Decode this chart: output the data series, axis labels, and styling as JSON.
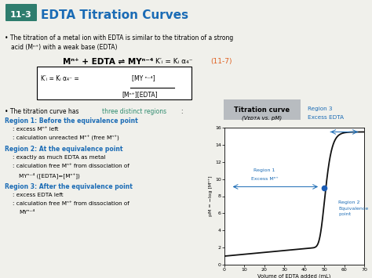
{
  "title_box": "11-3",
  "title_text": "EDTA Titration Curves",
  "bg_color": "#f0f0eb",
  "header_bg": "#2e7d6e",
  "title_color": "#1a6bb5",
  "region_color": "#1a6bb5",
  "highlight_color": "#2e8b6e",
  "orange_color": "#e06020",
  "chart_title_bg": "#b8bcc0",
  "curve_color": "#111111",
  "dot_color": "#1a5cb5",
  "xlabel": "Volume of EDTA added (mL)",
  "ylabel": "pM = −log [Mⁿ⁺]",
  "xlim": [
    0,
    70
  ],
  "ylim": [
    0,
    16
  ],
  "xticks": [
    0,
    10,
    20,
    30,
    40,
    50,
    60,
    70
  ],
  "yticks": [
    0,
    2,
    4,
    6,
    8,
    10,
    12,
    14,
    16
  ],
  "eq_point_x": 50,
  "eq_point_y": 9.0
}
